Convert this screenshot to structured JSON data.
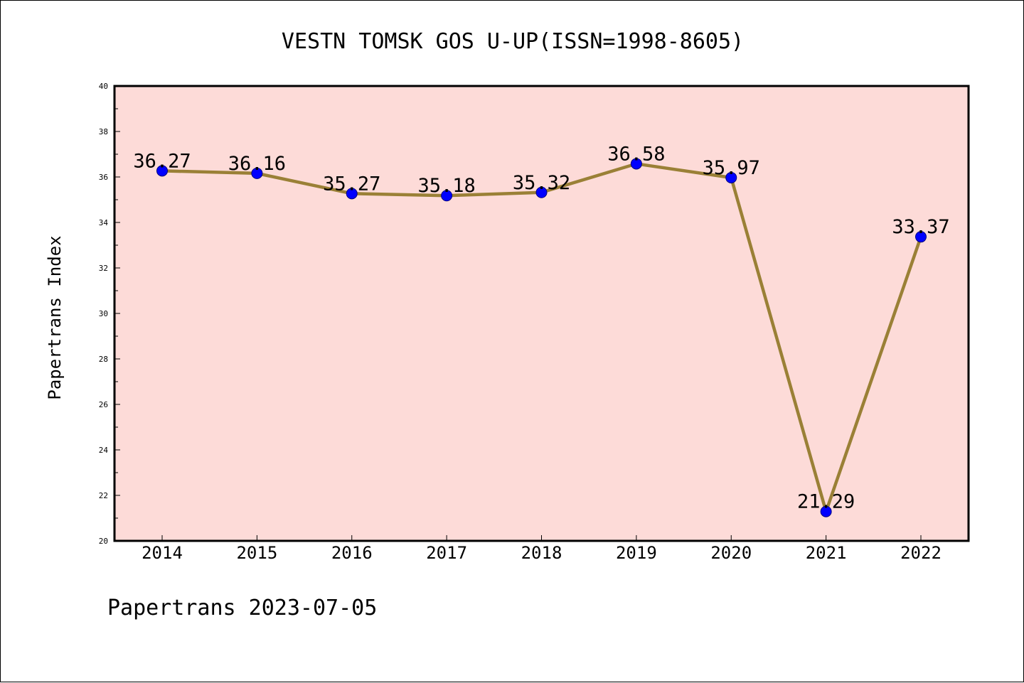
{
  "chart_data": {
    "type": "line",
    "title": "VESTN TOMSK GOS U-UP(ISSN=1998-8605)",
    "xlabel": "",
    "ylabel": "Papertrans Index",
    "categories": [
      "2014",
      "2015",
      "2016",
      "2017",
      "2018",
      "2019",
      "2020",
      "2021",
      "2022"
    ],
    "series": [
      {
        "values": [
          36.27,
          36.16,
          35.27,
          35.18,
          35.32,
          36.58,
          35.97,
          21.29,
          33.37
        ],
        "labels": [
          "36.27",
          "36.16",
          "35.27",
          "35.18",
          "35.32",
          "36.58",
          "35.97",
          "21.29",
          "33.37"
        ]
      }
    ],
    "ylim": [
      20,
      40
    ],
    "yticks": [
      20,
      22,
      24,
      26,
      28,
      30,
      32,
      34,
      36,
      38,
      40
    ],
    "grid": false,
    "colors": {
      "plot_background": "#fddbd8",
      "line": "#9a8036",
      "marker": "#0000ff",
      "marker_edge": "#000080"
    }
  },
  "footer": "Papertrans 2023-07-05"
}
